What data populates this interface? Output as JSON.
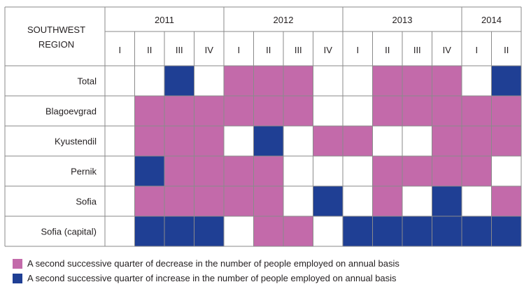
{
  "chart_data": {
    "type": "table",
    "region_header": [
      "SOUTHWEST",
      "REGION"
    ],
    "years": [
      {
        "label": "2011",
        "quarters": [
          "I",
          "II",
          "III",
          "IV"
        ]
      },
      {
        "label": "2012",
        "quarters": [
          "I",
          "II",
          "III",
          "IV"
        ]
      },
      {
        "label": "2013",
        "quarters": [
          "I",
          "II",
          "III",
          "IV"
        ]
      },
      {
        "label": "2014",
        "quarters": [
          "I",
          "II"
        ]
      }
    ],
    "rows": [
      {
        "label": "Total",
        "values": [
          "",
          "",
          "I",
          "",
          "D",
          "D",
          "D",
          "",
          "",
          "D",
          "D",
          "D",
          "",
          "I"
        ]
      },
      {
        "label": "Blagoevgrad",
        "values": [
          "",
          "D",
          "D",
          "D",
          "D",
          "D",
          "D",
          "",
          "",
          "D",
          "D",
          "D",
          "D",
          "D"
        ]
      },
      {
        "label": "Kyustendil",
        "values": [
          "",
          "D",
          "D",
          "D",
          "",
          "I",
          "",
          "D",
          "D",
          "",
          "",
          "D",
          "D",
          "D"
        ]
      },
      {
        "label": "Pernik",
        "values": [
          "",
          "I",
          "D",
          "D",
          "D",
          "D",
          "",
          "",
          "",
          "D",
          "D",
          "D",
          "D",
          ""
        ]
      },
      {
        "label": "Sofia",
        "values": [
          "",
          "D",
          "D",
          "D",
          "D",
          "D",
          "",
          "I",
          "",
          "D",
          "",
          "I",
          "",
          "D"
        ]
      },
      {
        "label": "Sofia (capital)",
        "values": [
          "",
          "I",
          "I",
          "I",
          "",
          "D",
          "D",
          "",
          "I",
          "I",
          "I",
          "I",
          "I",
          "I"
        ]
      }
    ],
    "legend": [
      {
        "key": "D",
        "label": "A second successive quarter of decrease in the number of people employed on annual basis",
        "color": "#c36aaa"
      },
      {
        "key": "I",
        "label": "A second successive quarter of increase in the number of people employed on annual basis",
        "color": "#1f3f94"
      }
    ]
  }
}
